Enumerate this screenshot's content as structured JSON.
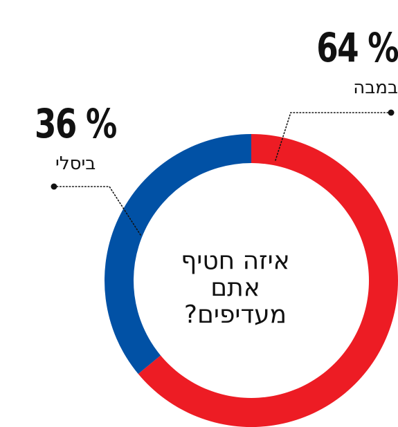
{
  "chart_data": {
    "type": "pie",
    "variant": "donut",
    "center_text_lines": [
      "איזה חטיף",
      "אתם",
      "מעדיפים?"
    ],
    "slices": [
      {
        "label": "במבה",
        "value": 64,
        "value_text": "64 %",
        "color": "#ED1C24"
      },
      {
        "label": "ביסלי",
        "value": 36,
        "value_text": "36 %",
        "color": "#0151A5"
      }
    ],
    "start_angle_deg": 0,
    "direction": "clockwise"
  }
}
